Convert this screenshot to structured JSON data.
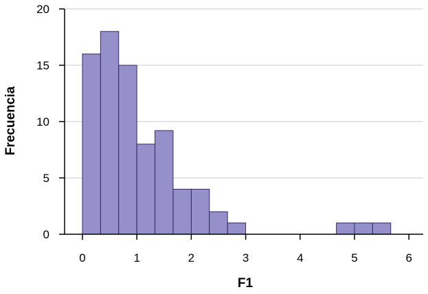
{
  "chart_data": {
    "type": "bar",
    "xlabel": "F1",
    "ylabel": "Frecuencia",
    "xlim": [
      -0.333,
      6.333
    ],
    "ylim": [
      0,
      20
    ],
    "x_ticks": [
      0,
      1,
      2,
      3,
      4,
      5,
      6
    ],
    "y_ticks": [
      0,
      5,
      10,
      15,
      20
    ],
    "grid": true,
    "bin_width": 0.333,
    "bins": [
      {
        "start": 0.0,
        "value": 16
      },
      {
        "start": 0.333,
        "value": 18
      },
      {
        "start": 0.667,
        "value": 15
      },
      {
        "start": 1.0,
        "value": 8
      },
      {
        "start": 1.333,
        "value": 9.2
      },
      {
        "start": 1.667,
        "value": 4
      },
      {
        "start": 2.0,
        "value": 4
      },
      {
        "start": 2.333,
        "value": 2
      },
      {
        "start": 2.667,
        "value": 1
      },
      {
        "start": 4.667,
        "value": 1
      },
      {
        "start": 5.0,
        "value": 1
      },
      {
        "start": 5.333,
        "value": 1
      }
    ],
    "bar_color": "#9590c9",
    "bar_edge_color": "#2e2a5e"
  }
}
